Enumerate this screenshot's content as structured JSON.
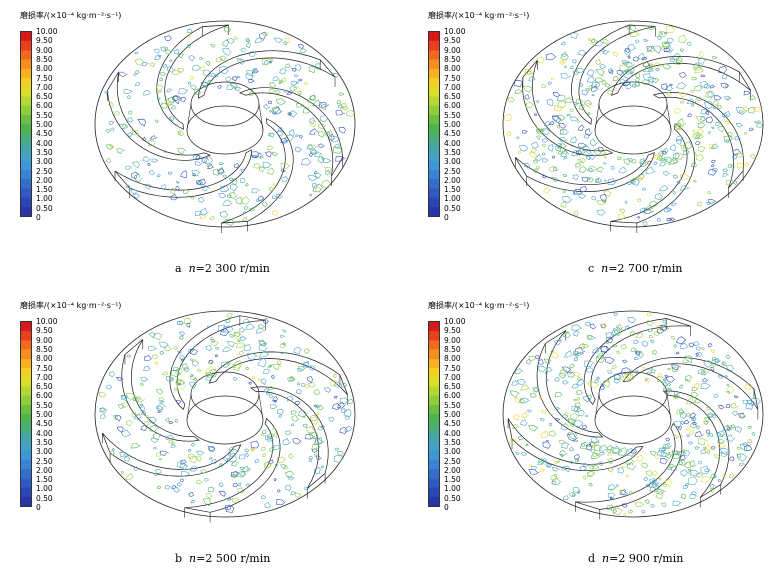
{
  "legend": {
    "title": "磨损率/(×10⁻⁴ kg·m⁻²·s⁻¹)",
    "ticks": [
      "10.00",
      "9.50",
      "9.00",
      "8.50",
      "8.00",
      "7.50",
      "7.00",
      "6.50",
      "6.00",
      "5.50",
      "5.00",
      "4.50",
      "4.00",
      "3.50",
      "3.00",
      "2.50",
      "2.00",
      "1.50",
      "1.00",
      "0.50",
      "0"
    ],
    "colors": [
      "#d7191c",
      "#e8401d",
      "#f2681e",
      "#f68f1f",
      "#f8b120",
      "#f3cf22",
      "#d9df2a",
      "#b6d832",
      "#8fcd3b",
      "#6bbf44",
      "#4fb34e",
      "#48ad7a",
      "#44a6a3",
      "#42a2c4",
      "#3e96d6",
      "#3a82d4",
      "#356dcc",
      "#305ac2",
      "#2b47b5",
      "#2636a6"
    ]
  },
  "panels": [
    {
      "id": "a",
      "letter": "a",
      "n_label": "n",
      "value": "=2 300 r/min",
      "intensity": 0.35
    },
    {
      "id": "b",
      "letter": "b",
      "n_label": "n",
      "value": "=2 500 r/min",
      "intensity": 0.45
    },
    {
      "id": "c",
      "letter": "c",
      "n_label": "n",
      "value": "=2 700 r/min",
      "intensity": 0.7
    },
    {
      "id": "d",
      "letter": "d",
      "n_label": "n",
      "value": "=2 900 r/min",
      "intensity": 0.9
    }
  ]
}
